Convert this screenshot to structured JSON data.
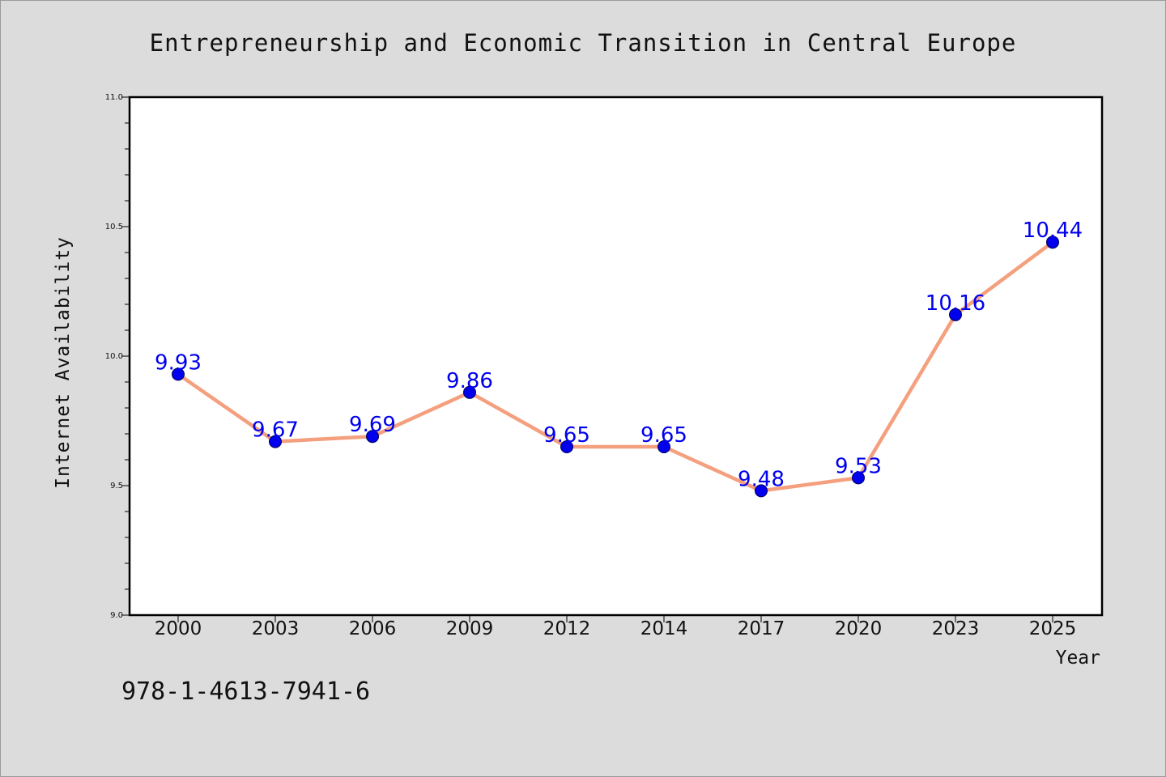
{
  "chart_data": {
    "type": "line",
    "title": "Entrepreneurship and Economic Transition in Central Europe",
    "xlabel": "Year",
    "ylabel": "Internet Availability",
    "categories": [
      "2000",
      "2003",
      "2006",
      "2009",
      "2012",
      "2014",
      "2017",
      "2020",
      "2023",
      "2025"
    ],
    "values": [
      9.93,
      9.67,
      9.69,
      9.86,
      9.65,
      9.65,
      9.48,
      9.53,
      10.16,
      10.44
    ],
    "data_labels": [
      "9.93",
      "9.67",
      "9.69",
      "9.86",
      "9.65",
      "9.65",
      "9.48",
      "9.53",
      "10.16",
      "10.44"
    ],
    "ylim": [
      9.0,
      11.0
    ],
    "yticks": [
      "9.0",
      "9.5",
      "10.0",
      "10.5",
      "11.0"
    ],
    "grid": false,
    "line_color": "#f4a07e",
    "marker_color": "#0000ee",
    "label_color": "#0000ee"
  },
  "footer": {
    "code": "978-1-4613-7941-6"
  }
}
